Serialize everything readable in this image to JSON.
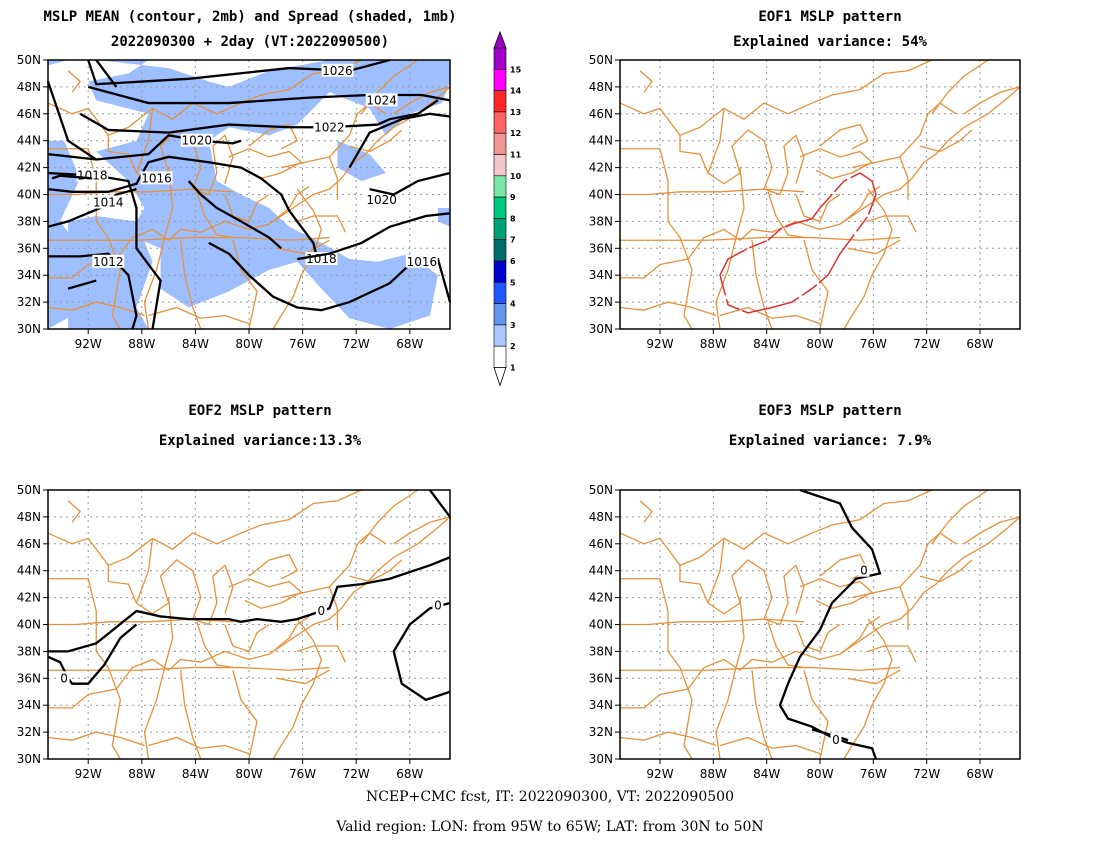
{
  "colors": {
    "map_lines": "#e8913a",
    "spread_fill": "#9dbfff",
    "eof1_contour": "#e03030",
    "contour": "#000000",
    "grid": "#999999"
  },
  "footer": {
    "line1": "NCEP+CMC fcst, IT: 2022090300, VT: 2022090500",
    "line2": "Valid region: LON: from 95W to 65W; LAT: from 30N to 50N"
  },
  "chart_data": [
    {
      "type": "contour",
      "title": "MSLP MEAN (contour, 2mb) and Spread (shaded, 1mb)",
      "subtitle": "2022090300 + 2day (VT:2022090500)",
      "xlim": [
        -95,
        -65
      ],
      "ylim": [
        30,
        50
      ],
      "x_ticks": [
        "92W",
        "88W",
        "84W",
        "80W",
        "76W",
        "72W",
        "68W"
      ],
      "y_ticks": [
        "30N",
        "32N",
        "34N",
        "36N",
        "38N",
        "40N",
        "42N",
        "44N",
        "46N",
        "48N",
        "50N"
      ],
      "grid": "dotted",
      "contour_labels": [
        "1026",
        "1024",
        "1022",
        "1020",
        "1018",
        "1016",
        "1014",
        "1012",
        "1020",
        "1018",
        "1016"
      ],
      "colorbar": {
        "levels": [
          "1",
          "2",
          "3",
          "4",
          "5",
          "6",
          "7",
          "8",
          "9",
          "10",
          "11",
          "12",
          "13",
          "14",
          "15"
        ],
        "colors": [
          "#ffffff",
          "#aac8ff",
          "#6495ed",
          "#1e5aff",
          "#0000cd",
          "#006d6d",
          "#00a07a",
          "#00c880",
          "#78e6a8",
          "#f5c8c8",
          "#f09696",
          "#ff6464",
          "#ff2828",
          "#ff00ff",
          "#a000c8"
        ]
      }
    },
    {
      "type": "contour",
      "title": "EOF1 MSLP pattern",
      "subtitle": "Explained variance: 54%",
      "xlim": [
        -95,
        -65
      ],
      "ylim": [
        30,
        50
      ],
      "x_ticks": [
        "92W",
        "88W",
        "84W",
        "80W",
        "76W",
        "72W",
        "68W"
      ],
      "y_ticks": [
        "30N",
        "32N",
        "34N",
        "36N",
        "38N",
        "40N",
        "42N",
        "44N",
        "46N",
        "48N",
        "50N"
      ],
      "grid": "dotted"
    },
    {
      "type": "contour",
      "title": "EOF2 MSLP pattern",
      "subtitle": "Explained variance:13.3%",
      "xlim": [
        -95,
        -65
      ],
      "ylim": [
        30,
        50
      ],
      "x_ticks": [
        "92W",
        "88W",
        "84W",
        "80W",
        "76W",
        "72W",
        "68W"
      ],
      "y_ticks": [
        "30N",
        "32N",
        "34N",
        "36N",
        "38N",
        "40N",
        "42N",
        "44N",
        "46N",
        "48N",
        "50N"
      ],
      "grid": "dotted",
      "contour_labels": [
        "0",
        "0",
        "0"
      ]
    },
    {
      "type": "contour",
      "title": "EOF3 MSLP pattern",
      "subtitle": "Explained variance: 7.9%",
      "xlim": [
        -95,
        -65
      ],
      "ylim": [
        30,
        50
      ],
      "x_ticks": [
        "92W",
        "88W",
        "84W",
        "80W",
        "76W",
        "72W",
        "68W"
      ],
      "y_ticks": [
        "30N",
        "32N",
        "34N",
        "36N",
        "38N",
        "40N",
        "42N",
        "44N",
        "46N",
        "48N",
        "50N"
      ],
      "grid": "dotted",
      "contour_labels": [
        "0",
        "0"
      ]
    }
  ]
}
